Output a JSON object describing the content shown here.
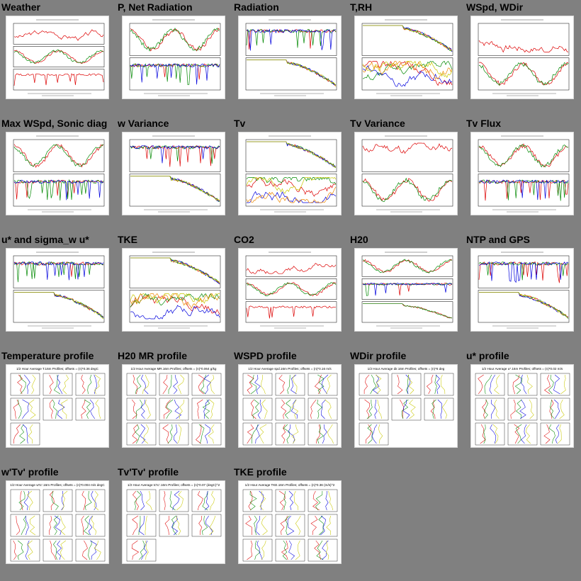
{
  "theme": {
    "background": "#808080",
    "thumb_background": "#ffffff",
    "trace_colors": [
      "#dd0000",
      "#008800",
      "#0000dd",
      "#c8c800",
      "#ee8800",
      "#00b000"
    ]
  },
  "thumbnails": [
    {
      "title": "Weather",
      "kind": "stack3"
    },
    {
      "title": "P, Net Radiation",
      "kind": "stack2"
    },
    {
      "title": "Radiation",
      "kind": "stack2"
    },
    {
      "title": "T,RH",
      "kind": "stack2"
    },
    {
      "title": "WSpd, WDir",
      "kind": "stack2"
    },
    {
      "title": "Max WSpd, Sonic diag",
      "kind": "stack2"
    },
    {
      "title": "w Variance",
      "kind": "stack2"
    },
    {
      "title": "Tv",
      "kind": "stack2"
    },
    {
      "title": "Tv Variance",
      "kind": "stack2"
    },
    {
      "title": "Tv Flux",
      "kind": "stack2"
    },
    {
      "title": "u* and sigma_w u*",
      "kind": "stack2"
    },
    {
      "title": "TKE",
      "kind": "stack2"
    },
    {
      "title": "CO2",
      "kind": "stack3"
    },
    {
      "title": "H20",
      "kind": "stack3"
    },
    {
      "title": "NTP and GPS",
      "kind": "stack2"
    },
    {
      "title": "Temperature profile",
      "kind": "profile",
      "caption": "1/2 Hour Average T.16m Profiles; offsets = (n)*0.36 degC"
    },
    {
      "title": "H20 MR profile",
      "kind": "profile",
      "caption": "1/2 Hour Average MR.16m Profiles; offsets = (n)*0.064 g/kg"
    },
    {
      "title": "WSPD profile",
      "kind": "profile",
      "caption": "1/2 Hour Average spd.16m Profiles; offsets = (n)*0.16 m/s"
    },
    {
      "title": "WDir profile",
      "kind": "profile",
      "caption": "1/2 Hour Average dir.16m Profiles; offsets = (n)*6 deg"
    },
    {
      "title": "u* profile",
      "kind": "profile",
      "caption": "1/2 Hour Average u*.16m Profiles; offsets = (n)*0.02 m/s"
    },
    {
      "title": "w'Tv' profile",
      "kind": "profile",
      "caption": "1/2 Hour Average w'tc'.16m Profiles; offsets = (n)*0.004 m/s degC"
    },
    {
      "title": "Tv'Tv' profile",
      "kind": "profile",
      "caption": "1/2 Hour Average tc'tc'.16m Profiles; offsets = (n)*0.07 (degC)^2"
    },
    {
      "title": "TKE profile",
      "kind": "profile",
      "caption": "1/2 Hour Average TKE.16m Profiles; offsets = (n)*0.36 (m/s)^2"
    }
  ]
}
